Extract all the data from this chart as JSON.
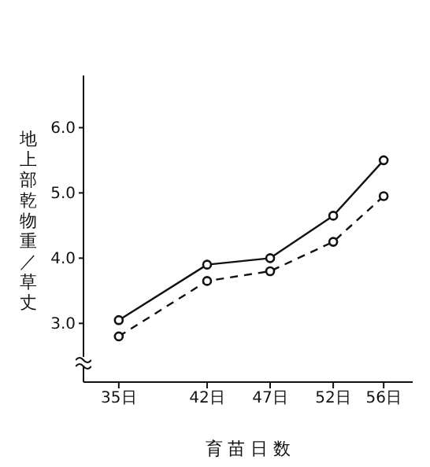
{
  "chart_data": {
    "type": "line",
    "xlabel": "育 苗 日 数",
    "ylabel": "地上部乾物重／草丈",
    "x": [
      35,
      42,
      47,
      52,
      56
    ],
    "series": [
      {
        "color": "#111111",
        "values": [
          3.05,
          3.9,
          4.0,
          4.65,
          5.5
        ],
        "line_style": "solid",
        "marker": "circle"
      },
      {
        "color": "#111111",
        "values": [
          2.8,
          3.65,
          3.8,
          4.25,
          4.95
        ],
        "line_style": "dashed",
        "marker": "circle"
      }
    ],
    "xlim": [
      32.2,
      58.3
    ],
    "xticks": [
      {
        "value": 35,
        "label": "35日"
      },
      {
        "value": 42,
        "label": "42日"
      },
      {
        "value": 47,
        "label": "47日"
      },
      {
        "value": 52,
        "label": "52日"
      },
      {
        "value": 56,
        "label": "56日"
      }
    ],
    "ylim": [
      2.1,
      6.8
    ],
    "yticks": [
      {
        "value": 3,
        "label": "3.0"
      },
      {
        "value": 4,
        "label": "4.0"
      },
      {
        "value": 5,
        "label": "5.0"
      },
      {
        "value": 6,
        "label": "6.0"
      }
    ],
    "grid": false,
    "legend": false
  }
}
